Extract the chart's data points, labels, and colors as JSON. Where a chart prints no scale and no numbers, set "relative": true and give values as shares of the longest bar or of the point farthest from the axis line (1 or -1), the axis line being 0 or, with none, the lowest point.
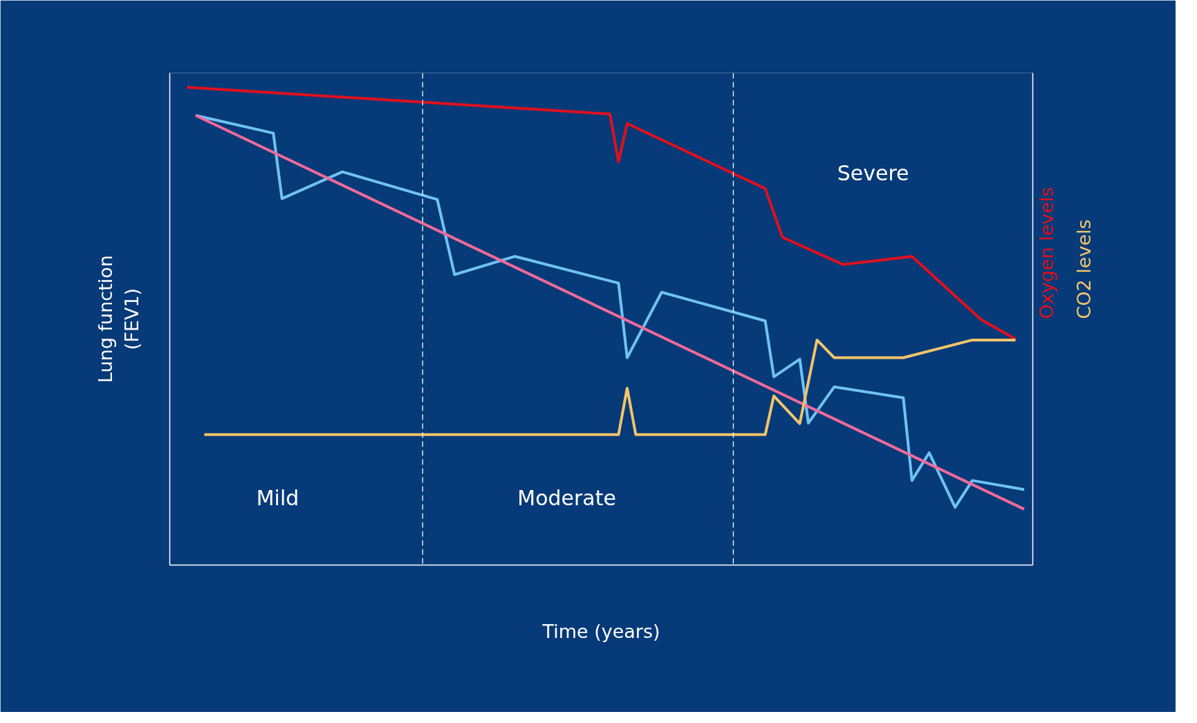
{
  "chart_data": {
    "type": "line",
    "relative": true,
    "xlabel": "Time (years)",
    "ylabel": "Lung function\n(FEV1)",
    "tick_labels": false,
    "marker": "none",
    "line_style": "solid",
    "categories": [
      null,
      null,
      null,
      null,
      null,
      null,
      null,
      null,
      null,
      null,
      null,
      null,
      null,
      null,
      null,
      null,
      null,
      null,
      null,
      null,
      null,
      null,
      null,
      null,
      null,
      null,
      null,
      null,
      null,
      null,
      null,
      null,
      null,
      null,
      null,
      null,
      null,
      null,
      null,
      null,
      null,
      null,
      null,
      null,
      null,
      null,
      null,
      null,
      null,
      null,
      null,
      null,
      null,
      null,
      null,
      null,
      null,
      null,
      null,
      null,
      null,
      null,
      null,
      null,
      null,
      null,
      null,
      null,
      null,
      null,
      null,
      null,
      null,
      null,
      null,
      null,
      null,
      null,
      null,
      null,
      null,
      null,
      null,
      null,
      null,
      null,
      null,
      null,
      null,
      null,
      null,
      null,
      null,
      null,
      null,
      null,
      null,
      null,
      null,
      null,
      null
    ],
    "series": [
      {
        "name": "Oxygen levels",
        "color": "#e0101e",
        "values": [
          null,
          null,
          1.0,
          null,
          null,
          null,
          null,
          null,
          null,
          null,
          null,
          null,
          null,
          null,
          null,
          null,
          null,
          null,
          null,
          null,
          null,
          null,
          null,
          null,
          null,
          null,
          null,
          null,
          null,
          null,
          null,
          null,
          null,
          null,
          null,
          null,
          null,
          null,
          null,
          null,
          null,
          null,
          null,
          null,
          null,
          null,
          null,
          null,
          null,
          null,
          null,
          0.944,
          0.844,
          0.924,
          null,
          null,
          null,
          null,
          null,
          null,
          null,
          null,
          null,
          null,
          null,
          null,
          null,
          null,
          null,
          0.788,
          null,
          0.686,
          null,
          null,
          null,
          null,
          null,
          null,
          0.629,
          null,
          null,
          null,
          null,
          null,
          null,
          null,
          0.646,
          null,
          null,
          null,
          null,
          null,
          null,
          null,
          0.514,
          null,
          null,
          null,
          0.473,
          null,
          null
        ]
      },
      {
        "color": "#6ec3f4",
        "values": [
          null,
          null,
          null,
          0.941,
          null,
          null,
          null,
          null,
          null,
          null,
          null,
          null,
          0.904,
          0.767,
          null,
          null,
          null,
          null,
          null,
          null,
          0.823,
          null,
          null,
          null,
          null,
          null,
          null,
          null,
          null,
          null,
          null,
          0.765,
          null,
          0.608,
          null,
          null,
          null,
          null,
          null,
          null,
          0.646,
          null,
          null,
          null,
          null,
          null,
          null,
          null,
          null,
          null,
          null,
          null,
          0.59,
          0.434,
          null,
          null,
          null,
          0.571,
          null,
          null,
          null,
          null,
          null,
          null,
          null,
          null,
          null,
          null,
          null,
          0.511,
          0.394,
          null,
          null,
          0.431,
          0.297,
          null,
          null,
          0.373,
          null,
          null,
          null,
          null,
          null,
          null,
          null,
          0.35,
          0.177,
          null,
          0.235,
          null,
          null,
          0.121,
          null,
          0.177,
          null,
          null,
          null,
          null,
          null,
          0.158,
          null
        ]
      },
      {
        "color": "#f06a9a",
        "values": [
          null,
          null,
          null,
          0.941,
          null,
          null,
          null,
          null,
          null,
          null,
          null,
          null,
          null,
          null,
          null,
          null,
          null,
          null,
          null,
          null,
          null,
          null,
          null,
          null,
          null,
          null,
          null,
          null,
          null,
          null,
          null,
          null,
          null,
          null,
          null,
          null,
          null,
          null,
          null,
          null,
          null,
          null,
          null,
          null,
          null,
          null,
          null,
          null,
          null,
          null,
          null,
          null,
          null,
          null,
          null,
          null,
          null,
          null,
          null,
          null,
          null,
          null,
          null,
          null,
          null,
          null,
          null,
          null,
          null,
          null,
          null,
          null,
          null,
          null,
          null,
          null,
          null,
          null,
          null,
          null,
          null,
          null,
          null,
          null,
          null,
          null,
          null,
          null,
          null,
          null,
          null,
          null,
          null,
          null,
          null,
          null,
          null,
          null,
          null,
          0.117,
          null
        ]
      },
      {
        "name": "CO2 levels",
        "color": "#f2c46a",
        "values": [
          null,
          null,
          null,
          null,
          0.273,
          null,
          null,
          null,
          null,
          null,
          null,
          null,
          null,
          null,
          null,
          null,
          null,
          null,
          null,
          null,
          null,
          null,
          null,
          null,
          null,
          null,
          null,
          null,
          null,
          null,
          null,
          null,
          null,
          null,
          null,
          null,
          null,
          null,
          null,
          null,
          null,
          null,
          null,
          null,
          null,
          null,
          null,
          null,
          null,
          null,
          null,
          null,
          0.273,
          0.37,
          0.273,
          null,
          null,
          null,
          null,
          null,
          null,
          null,
          null,
          null,
          null,
          null,
          null,
          null,
          null,
          0.273,
          0.354,
          null,
          null,
          0.296,
          null,
          0.471,
          null,
          0.434,
          null,
          null,
          null,
          null,
          null,
          null,
          null,
          0.434,
          null,
          null,
          null,
          null,
          null,
          null,
          null,
          0.471,
          null,
          null,
          null,
          null,
          0.471,
          null,
          null
        ]
      }
    ],
    "annotations": [
      "Mild",
      "Moderate",
      "Severe"
    ]
  }
}
